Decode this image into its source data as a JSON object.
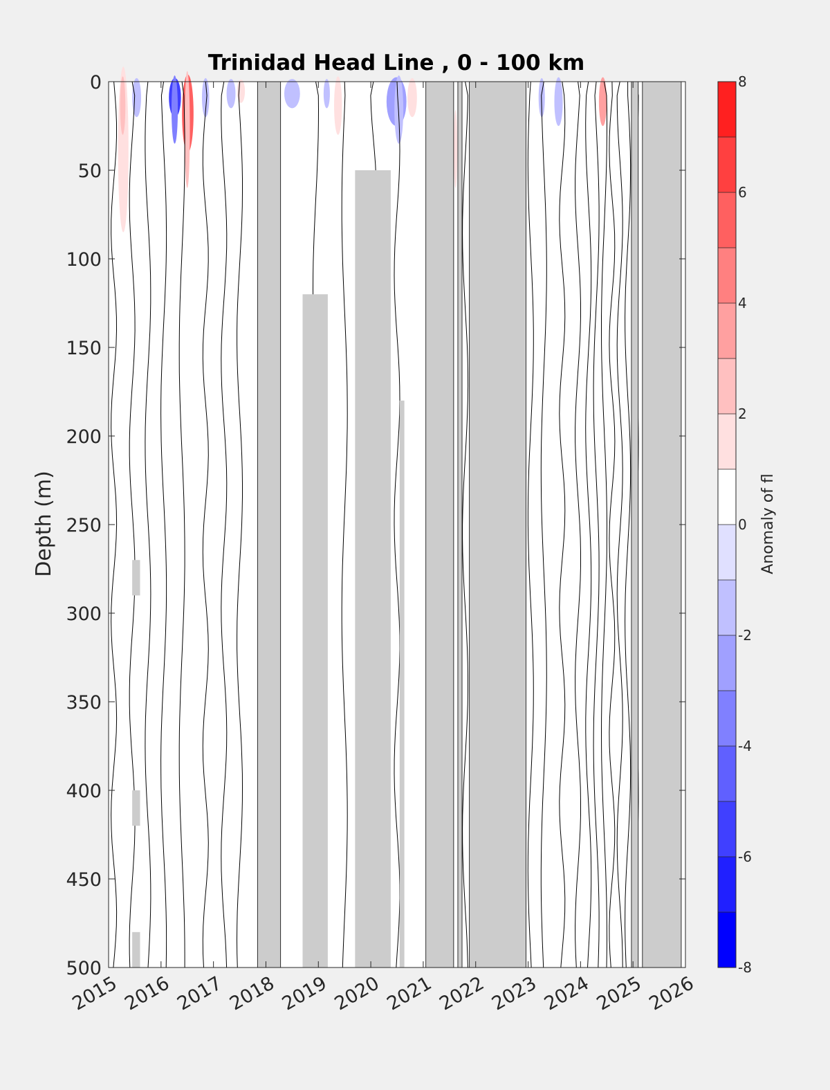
{
  "chart_data": {
    "type": "heatmap",
    "title": "Trinidad Head Line , 0 - 100 km",
    "xlabel": "",
    "ylabel": "Depth (m)",
    "xlim": [
      2015,
      2026
    ],
    "ylim": [
      0,
      500
    ],
    "y_reversed": true,
    "x_ticks": [
      2015,
      2016,
      2017,
      2018,
      2019,
      2020,
      2021,
      2022,
      2023,
      2024,
      2025,
      2026
    ],
    "y_ticks": [
      0,
      50,
      100,
      150,
      200,
      250,
      300,
      350,
      400,
      450,
      500
    ],
    "colorbar": {
      "label": "Anomaly of fl",
      "range": [
        -8,
        8
      ],
      "ticks": [
        -8,
        -6,
        -4,
        -2,
        0,
        2,
        4,
        6,
        8
      ],
      "levels": [
        -8,
        -7,
        -6,
        -5,
        -4,
        -3,
        -2,
        -1,
        0,
        1,
        2,
        3,
        4,
        5,
        6,
        7,
        8
      ],
      "colors": [
        "#0000ff",
        "#2020ff",
        "#4040ff",
        "#6060ff",
        "#8080ff",
        "#a0a0ff",
        "#c0c0ff",
        "#e0e0ff",
        "#ffffff",
        "#ffffff",
        "#ffe0e0",
        "#ffc0c0",
        "#ffa0a0",
        "#ff8080",
        "#ff6060",
        "#ff4040",
        "#ff2020",
        "#ff0000"
      ]
    },
    "no_data_color": "#cccccc",
    "no_data_regions": [
      {
        "x": [
          2017.84,
          2018.28
        ],
        "y": [
          0,
          500
        ]
      },
      {
        "x": [
          2021.05,
          2021.58
        ],
        "y": [
          0,
          500
        ]
      },
      {
        "x": [
          2021.66,
          2021.74
        ],
        "y": [
          0,
          500
        ]
      },
      {
        "x": [
          2021.88,
          2022.96
        ],
        "y": [
          0,
          500
        ]
      },
      {
        "x": [
          2024.97,
          2025.1
        ],
        "y": [
          0,
          500
        ]
      },
      {
        "x": [
          2025.18,
          2025.92
        ],
        "y": [
          0,
          500
        ]
      },
      {
        "x": [
          2019.7,
          2020.38
        ],
        "y": [
          50,
          500
        ]
      },
      {
        "x": [
          2018.7,
          2019.18
        ],
        "y": [
          120,
          500
        ]
      },
      {
        "x": [
          2020.55,
          2020.64
        ],
        "y": [
          180,
          500
        ]
      },
      {
        "x": [
          2015.45,
          2015.6
        ],
        "y": [
          270,
          290
        ]
      },
      {
        "x": [
          2015.45,
          2015.6
        ],
        "y": [
          400,
          420
        ]
      },
      {
        "x": [
          2015.45,
          2015.6
        ],
        "y": [
          480,
          500
        ]
      }
    ],
    "anomaly_patches": [
      {
        "x": [
          2015.18,
          2015.38
        ],
        "y": [
          0,
          85
        ],
        "value": 2.5
      },
      {
        "x": [
          2015.22,
          2015.32
        ],
        "y": [
          0,
          30
        ],
        "value": 3.5
      },
      {
        "x": [
          2015.45,
          2015.62
        ],
        "y": [
          0,
          20
        ],
        "value": -1.5
      },
      {
        "x": [
          2016.15,
          2016.38
        ],
        "y": [
          0,
          20
        ],
        "value": -6
      },
      {
        "x": [
          2016.2,
          2016.32
        ],
        "y": [
          0,
          35
        ],
        "value": -4
      },
      {
        "x": [
          2016.4,
          2016.62
        ],
        "y": [
          0,
          40
        ],
        "value": 6
      },
      {
        "x": [
          2016.45,
          2016.55
        ],
        "y": [
          0,
          60
        ],
        "value": 3
      },
      {
        "x": [
          2016.78,
          2016.92
        ],
        "y": [
          0,
          20
        ],
        "value": -1.5
      },
      {
        "x": [
          2017.25,
          2017.42
        ],
        "y": [
          0,
          15
        ],
        "value": -1.5
      },
      {
        "x": [
          2017.45,
          2017.6
        ],
        "y": [
          0,
          12
        ],
        "value": 2
      },
      {
        "x": [
          2018.35,
          2018.65
        ],
        "y": [
          0,
          15
        ],
        "value": -1.5
      },
      {
        "x": [
          2019.1,
          2019.22
        ],
        "y": [
          0,
          15
        ],
        "value": -1.5
      },
      {
        "x": [
          2019.3,
          2019.45
        ],
        "y": [
          0,
          30
        ],
        "value": 2.5
      },
      {
        "x": [
          2020.3,
          2020.68
        ],
        "y": [
          0,
          25
        ],
        "value": -3
      },
      {
        "x": [
          2020.45,
          2020.62
        ],
        "y": [
          0,
          35
        ],
        "value": -1.5
      },
      {
        "x": [
          2020.7,
          2020.88
        ],
        "y": [
          0,
          20
        ],
        "value": 2
      },
      {
        "x": [
          2021.58,
          2021.65
        ],
        "y": [
          20,
          60
        ],
        "value": 2
      },
      {
        "x": [
          2023.2,
          2023.32
        ],
        "y": [
          0,
          20
        ],
        "value": -1.5
      },
      {
        "x": [
          2023.5,
          2023.66
        ],
        "y": [
          0,
          25
        ],
        "value": -1.5
      },
      {
        "x": [
          2024.35,
          2024.5
        ],
        "y": [
          0,
          25
        ],
        "value": 4
      }
    ],
    "contour_lines_x": [
      2015.1,
      2015.45,
      2015.75,
      2016.05,
      2016.4,
      2016.85,
      2017.2,
      2017.5,
      2018.95,
      2019.5,
      2020.05,
      2020.5,
      2021.8,
      2023.05,
      2023.3,
      2023.65,
      2023.95,
      2024.15,
      2024.3,
      2024.45,
      2024.6,
      2024.75,
      2024.9,
      2025.05
    ]
  }
}
